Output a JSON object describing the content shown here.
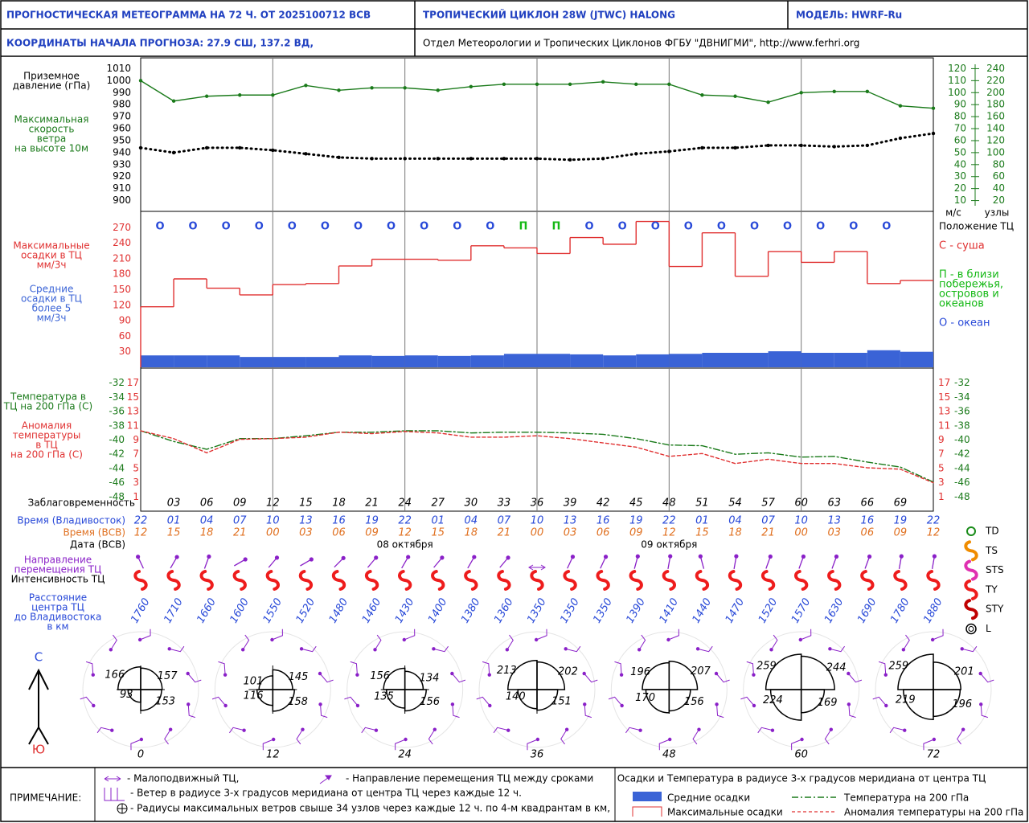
{
  "header": {
    "title": "ПРОГНОСТИЧЕСКАЯ МЕТЕОГРАММА НА 72 Ч. ОТ 2025100712 ВСВ",
    "cyclone": "ТРОПИЧЕСКИЙ ЦИКЛОН 28W (JTWC) HALONG",
    "model": "МОДЕЛЬ: HWRF-Ru",
    "coordinates": "КООРДИНАТЫ НАЧАЛА ПРОГНОЗА: 27.9 СШ, 137.2 ВД,",
    "department": "Отдел Метеорологии и Тропических Циклонов ФГБУ \"ДВНИГМИ\",  http://www.ferhri.org"
  },
  "chart_data": [
    {
      "type": "line",
      "x": [
        0,
        3,
        6,
        9,
        12,
        15,
        18,
        21,
        24,
        27,
        30,
        33,
        36,
        39,
        42,
        45,
        48,
        51,
        54,
        57,
        60,
        63,
        66,
        69,
        72
      ],
      "xlim": [
        0,
        72
      ],
      "ylabel": [
        "Приземное",
        "давление (гПа)"
      ],
      "y2label": [
        "Максимальная",
        "скорость",
        "ветра",
        "на высоте 10м"
      ],
      "y2unit": "м/с",
      "y3unit": "узлы",
      "ylim": [
        891,
        1019
      ],
      "yticks": [
        900,
        910,
        920,
        930,
        940,
        950,
        960,
        970,
        980,
        990,
        1000,
        1010
      ],
      "y2lim": [
        1,
        129
      ],
      "y2ticks": [
        10,
        20,
        30,
        40,
        50,
        60,
        70,
        80,
        90,
        100,
        110,
        120
      ],
      "y3lim": [
        2,
        258
      ],
      "y3ticks": [
        20,
        40,
        60,
        80,
        100,
        120,
        140,
        160,
        180,
        200,
        220,
        240
      ],
      "grid": false,
      "series": [
        {
          "color": "#1a7a1a",
          "line_style": "solid",
          "markers": true,
          "axis": "y",
          "values": [
            1000,
            983,
            987,
            988,
            988,
            996,
            992,
            994,
            994,
            992,
            995,
            997,
            997,
            997,
            999,
            997,
            997,
            988,
            987,
            982,
            990,
            991,
            991,
            979,
            977
          ]
        },
        {
          "color": "#000000",
          "line_style": "dotted",
          "markers": true,
          "axis": "y2",
          "values": [
            54,
            50,
            54,
            54,
            52,
            49,
            46,
            45,
            45,
            45,
            45,
            45,
            45,
            44,
            45,
            49,
            51,
            54,
            54,
            56,
            56,
            55,
            56,
            62,
            66
          ]
        }
      ]
    },
    {
      "type": "histogram",
      "bins": [
        0,
        3,
        6,
        9,
        12,
        15,
        18,
        21,
        24,
        27,
        30,
        33,
        36,
        39,
        42,
        45,
        48,
        51,
        54,
        57,
        60,
        63,
        66,
        69,
        72
      ],
      "xlim": [
        0,
        72
      ],
      "ylim": [
        0,
        300
      ],
      "yticks": [
        30,
        60,
        90,
        120,
        150,
        180,
        210,
        240,
        270
      ],
      "grid": false,
      "max_label": [
        "Максимальные",
        "осадки в ТЦ",
        "мм/3ч"
      ],
      "mean_label": [
        "Средние",
        "осадки в ТЦ",
        "более 5",
        "мм/3ч"
      ],
      "series": [
        {
          "name": "Средние осадки",
          "color": "#3a63d6",
          "style": "bar",
          "values": [
            23,
            23,
            23,
            20,
            20,
            20,
            23,
            22,
            23,
            22,
            23,
            26,
            26,
            25,
            23,
            25,
            26,
            28,
            28,
            31,
            28,
            28,
            33,
            30
          ]
        },
        {
          "name": "Максимальные осадки",
          "color": "#e03030",
          "style": "step",
          "values": [
            117,
            171,
            153,
            140,
            160,
            162,
            196,
            209,
            209,
            207,
            235,
            231,
            220,
            251,
            238,
            282,
            195,
            260,
            176,
            224,
            203,
            224,
            162,
            168
          ]
        }
      ],
      "position_codes": [
        "О",
        "О",
        "О",
        "О",
        "О",
        "О",
        "О",
        "О",
        "О",
        "О",
        "О",
        "П",
        "П",
        "О",
        "О",
        "О",
        "О",
        "О",
        "О",
        "О",
        "О",
        "О",
        "О"
      ],
      "position_colors": {
        "С": "#e03030",
        "П": "#14b814",
        "О": "#2748d8"
      },
      "position_title": "Положение ТЦ",
      "position_legend": [
        {
          "lines": [
            "С - суша"
          ],
          "color": "#e03030"
        },
        {
          "lines": [
            "П - в близи",
            "побережья,",
            "островов и",
            "океанов"
          ],
          "color": "#14b814"
        },
        {
          "lines": [
            "О - океан"
          ],
          "color": "#2748d8"
        }
      ]
    },
    {
      "type": "line",
      "x": [
        0,
        3,
        6,
        9,
        12,
        15,
        18,
        21,
        24,
        27,
        30,
        33,
        36,
        39,
        42,
        45,
        48,
        51,
        54,
        57,
        60,
        63,
        66,
        69,
        72
      ],
      "xlim": [
        0,
        72
      ],
      "xlabel": "Заблаговременность",
      "xticks": [
        {
          "value": 3,
          "label": "03"
        },
        {
          "value": 6,
          "label": "06"
        },
        {
          "value": 9,
          "label": "09"
        },
        12,
        15,
        18,
        21,
        24,
        27,
        30,
        33,
        36,
        39,
        42,
        45,
        48,
        51,
        54,
        57,
        60,
        63,
        66,
        69
      ],
      "ylabel": [
        "Температура в",
        "ТЦ на 200 гПа (С)"
      ],
      "y2label": [
        "Аномалия",
        "температуры",
        "в ТЦ",
        "на 200 гПа (С)"
      ],
      "ylim": [
        -50,
        -30
      ],
      "yticks": [
        -48,
        -46,
        -44,
        -42,
        -40,
        -38,
        -36,
        -34,
        -32
      ],
      "y2lim": [
        -1,
        19
      ],
      "y2ticks": [
        1,
        3,
        5,
        7,
        9,
        11,
        13,
        15,
        17
      ],
      "grid": false,
      "series": [
        {
          "name": "Температура на 200 гПа",
          "color": "#1a7a1a",
          "line_style": "dashdot",
          "axis": "y",
          "values": [
            -38.7,
            -40.2,
            -41.3,
            -39.8,
            -39.8,
            -39.4,
            -38.9,
            -38.9,
            -38.7,
            -38.7,
            -39,
            -38.9,
            -38.9,
            -39,
            -39.2,
            -39.8,
            -40.7,
            -40.8,
            -42,
            -41.8,
            -42.4,
            -42.3,
            -43.1,
            -43.8,
            -45.9
          ]
        },
        {
          "name": "Аномалия температуры на 200 гПа",
          "color": "#e03030",
          "line_style": "dashed",
          "axis": "y2",
          "values": [
            10.3,
            9.2,
            7.2,
            9.1,
            9.2,
            9.4,
            10.1,
            9.9,
            10.2,
            10,
            9.4,
            9.4,
            9.6,
            9.2,
            8.6,
            8,
            6.7,
            7.1,
            5.7,
            6.3,
            5.7,
            5.7,
            5.1,
            4.9,
            3
          ]
        }
      ]
    }
  ],
  "rows": [
    {
      "label": "Время (Владивосток)",
      "color": "#2748d8",
      "values": [
        "22",
        "01",
        "04",
        "07",
        "10",
        "13",
        "16",
        "19",
        "22",
        "01",
        "04",
        "07",
        "10",
        "13",
        "16",
        "19",
        "22",
        "01",
        "04",
        "07",
        "10",
        "13",
        "16",
        "19",
        "22"
      ]
    },
    {
      "label": "Время (ВСВ)",
      "color": "#e07020",
      "values": [
        "12",
        "15",
        "18",
        "21",
        "00",
        "03",
        "06",
        "09",
        "12",
        "15",
        "18",
        "21",
        "00",
        "03",
        "06",
        "09",
        "12",
        "15",
        "18",
        "21",
        "00",
        "03",
        "06",
        "09",
        "12"
      ]
    },
    {
      "label": "Дата (ВСВ)",
      "color": "#000000",
      "values": [
        null,
        null,
        null,
        null,
        null,
        null,
        null,
        null,
        "08 октября",
        null,
        null,
        null,
        null,
        null,
        null,
        null,
        "09 октября",
        null,
        null,
        null,
        null,
        null,
        null,
        null,
        null
      ]
    }
  ],
  "track": {
    "direction_label": [
      "Направление",
      "перемещения ТЦ"
    ],
    "intensity_label": "Интенсивность ТЦ",
    "distance_label": [
      "Расстояние",
      "центра ТЦ",
      "до Владивостока",
      "в км"
    ],
    "direction_deg": [
      335,
      30,
      20,
      60,
      40,
      60,
      45,
      40,
      30,
      40,
      30,
      40,
      null,
      25,
      25,
      15,
      10,
      345,
      10,
      20,
      20,
      20,
      20,
      10,
      10
    ],
    "intensity": [
      "TY",
      "TY",
      "TY",
      "TY",
      "TY",
      "TY",
      "TY",
      "TY",
      "TY",
      "TY",
      "TY",
      "TY",
      "TY",
      "TY",
      "TY",
      "TY",
      "TY",
      "TY",
      "TY",
      "TY",
      "TY",
      "TY",
      "TY",
      "TY",
      "TY"
    ],
    "distance_km": [
      1760,
      1710,
      1660,
      1600,
      1550,
      1520,
      1480,
      1460,
      1430,
      1400,
      1380,
      1360,
      1350,
      1350,
      1350,
      1390,
      1410,
      1440,
      1470,
      1520,
      1570,
      1630,
      1690,
      1780,
      1880
    ],
    "intensity_legend": [
      {
        "code": "TD",
        "color": "#1a8c1a",
        "symbol": "circle"
      },
      {
        "code": "TS",
        "color": "#f08c00",
        "symbol": "hook"
      },
      {
        "code": "STS",
        "color": "#e030b0",
        "symbol": "hook"
      },
      {
        "code": "TY",
        "color": "#ee1c1c",
        "symbol": "hook"
      },
      {
        "code": "STY",
        "color": "#c00000",
        "symbol": "hook"
      },
      {
        "code": "L",
        "color": "#000000",
        "symbol": "double-circle"
      }
    ]
  },
  "wind_radii": [
    {
      "lead": 0,
      "nw": 166,
      "ne": 157,
      "se": 153,
      "sw": 93
    },
    {
      "lead": 12,
      "nw": 101,
      "ne": 145,
      "se": 158,
      "sw": 116
    },
    {
      "lead": 24,
      "nw": 156,
      "ne": 134,
      "se": 156,
      "sw": 135
    },
    {
      "lead": 36,
      "nw": 213,
      "ne": 202,
      "se": 151,
      "sw": 140
    },
    {
      "lead": 48,
      "nw": 196,
      "ne": 207,
      "se": 156,
      "sw": 170
    },
    {
      "lead": 60,
      "nw": 259,
      "ne": 244,
      "se": 169,
      "sw": 224
    },
    {
      "lead": 72,
      "nw": 259,
      "ne": 201,
      "se": 196,
      "sw": 219
    }
  ],
  "compass": {
    "north": "С",
    "south": "Ю"
  },
  "notes": {
    "title": "ПРИМЕЧАНИЕ:",
    "stationary": "- Малоподвижный ТЦ,",
    "direction": "- Направление перемещения ТЦ между сроками",
    "winds": "- Ветер в радиусе 3-х градусов меридиана от центра ТЦ через каждые 12 ч.",
    "radii": "- Радиусы максимальных ветров свыше 34 узлов через каждые 12 ч. по 4-м квадрантам в км,",
    "legend_title": "Осадки и Температура в радиусе 3-х градусов меридиана от центра ТЦ"
  }
}
